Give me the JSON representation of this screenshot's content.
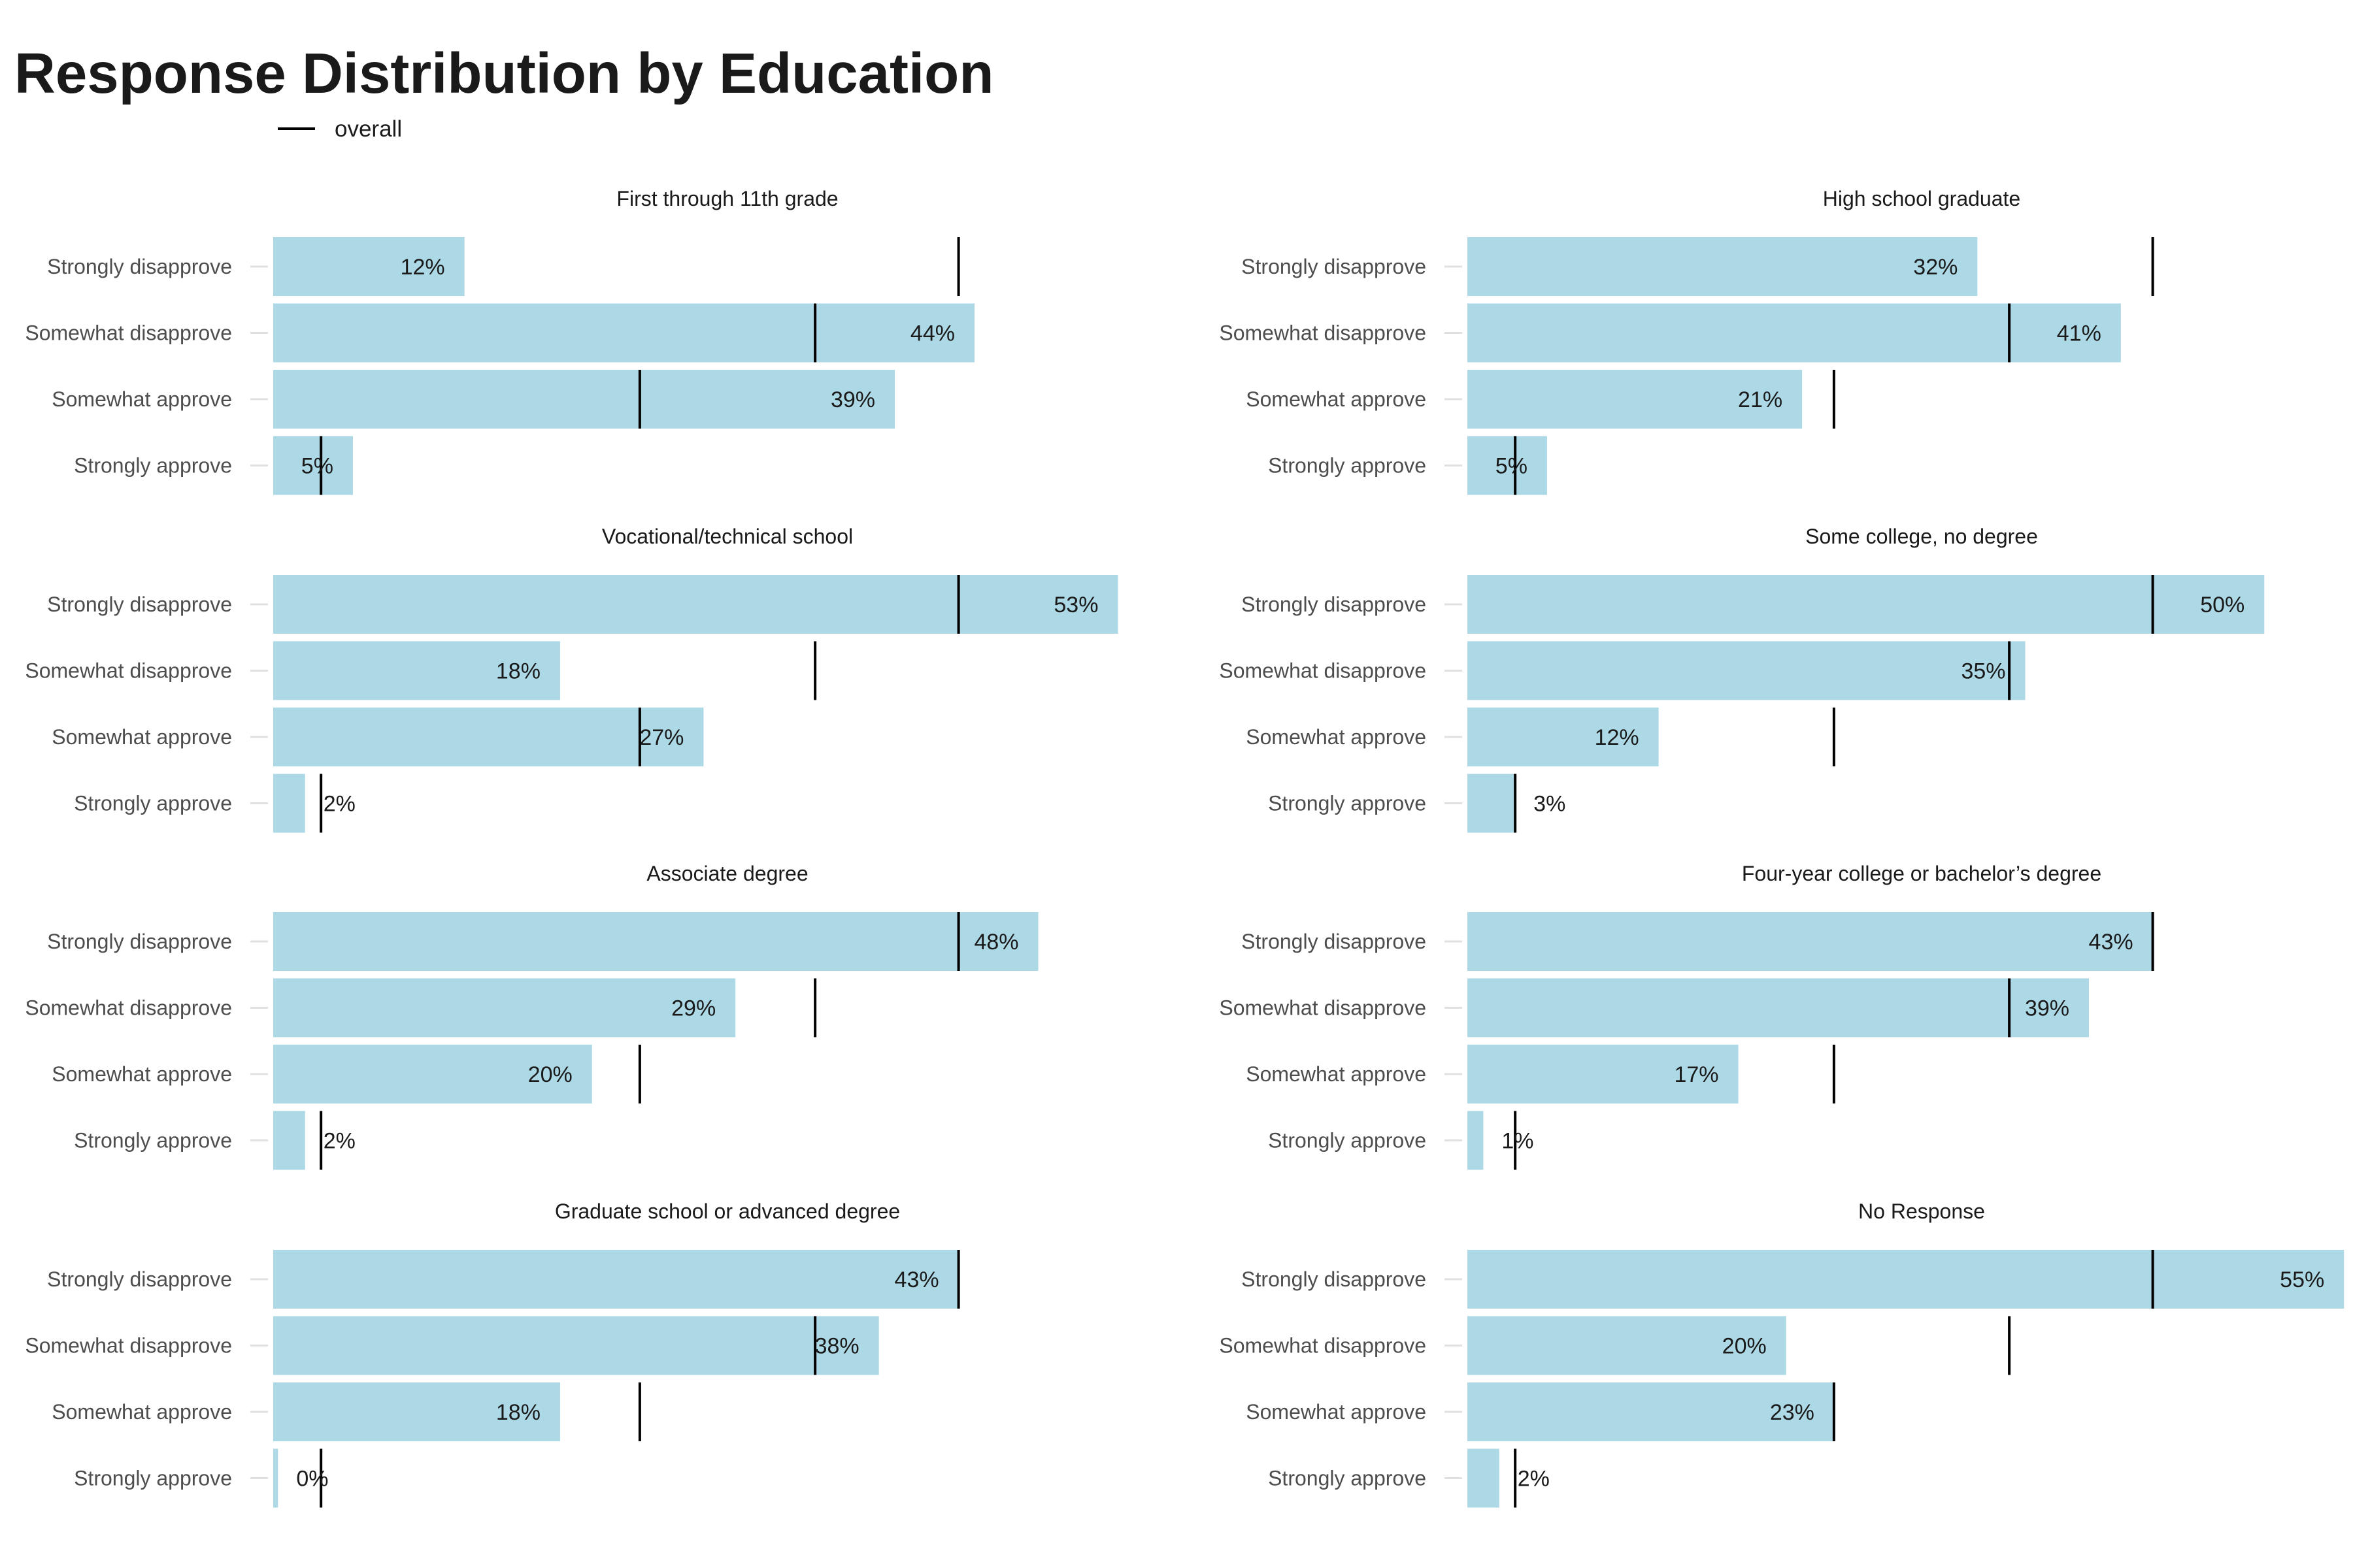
{
  "title": "Response Distribution by Education",
  "legend": {
    "label": "overall",
    "position": "top-left"
  },
  "colors": {
    "bar": "#add8e6",
    "marker": "#000000",
    "tick": "#e0e0e0"
  },
  "chart_data": {
    "type": "bar",
    "orientation": "horizontal",
    "facet_columns": 2,
    "categories": [
      "Strongly disapprove",
      "Somewhat disapprove",
      "Somewhat approve",
      "Strongly approve"
    ],
    "overall": [
      43,
      34,
      23,
      3
    ],
    "xlim": [
      0,
      57
    ],
    "grid": false,
    "panels": [
      {
        "title": "First through 11th grade",
        "values": [
          12,
          44,
          39,
          5
        ],
        "labels": [
          "12%",
          "44%",
          "39%",
          "5%"
        ]
      },
      {
        "title": "High school graduate",
        "values": [
          32,
          41,
          21,
          5
        ],
        "labels": [
          "32%",
          "41%",
          "21%",
          "5%"
        ]
      },
      {
        "title": "Vocational/technical school",
        "values": [
          53,
          18,
          27,
          2
        ],
        "labels": [
          "53%",
          "18%",
          "27%",
          "2%"
        ]
      },
      {
        "title": "Some college, no degree",
        "values": [
          50,
          35,
          12,
          3
        ],
        "labels": [
          "50%",
          "35%",
          "12%",
          "3%"
        ]
      },
      {
        "title": "Associate degree",
        "values": [
          48,
          29,
          20,
          2
        ],
        "labels": [
          "48%",
          "29%",
          "20%",
          "2%"
        ]
      },
      {
        "title": "Four-year college or bachelor’s degree",
        "values": [
          43,
          39,
          17,
          1
        ],
        "labels": [
          "43%",
          "39%",
          "17%",
          "1%"
        ]
      },
      {
        "title": "Graduate school or advanced degree",
        "values": [
          43,
          38,
          18,
          0.3
        ],
        "labels": [
          "43%",
          "38%",
          "18%",
          "0%"
        ]
      },
      {
        "title": "No Response",
        "values": [
          55,
          20,
          23,
          2
        ],
        "labels": [
          "55%",
          "20%",
          "23%",
          "2%"
        ]
      }
    ]
  }
}
